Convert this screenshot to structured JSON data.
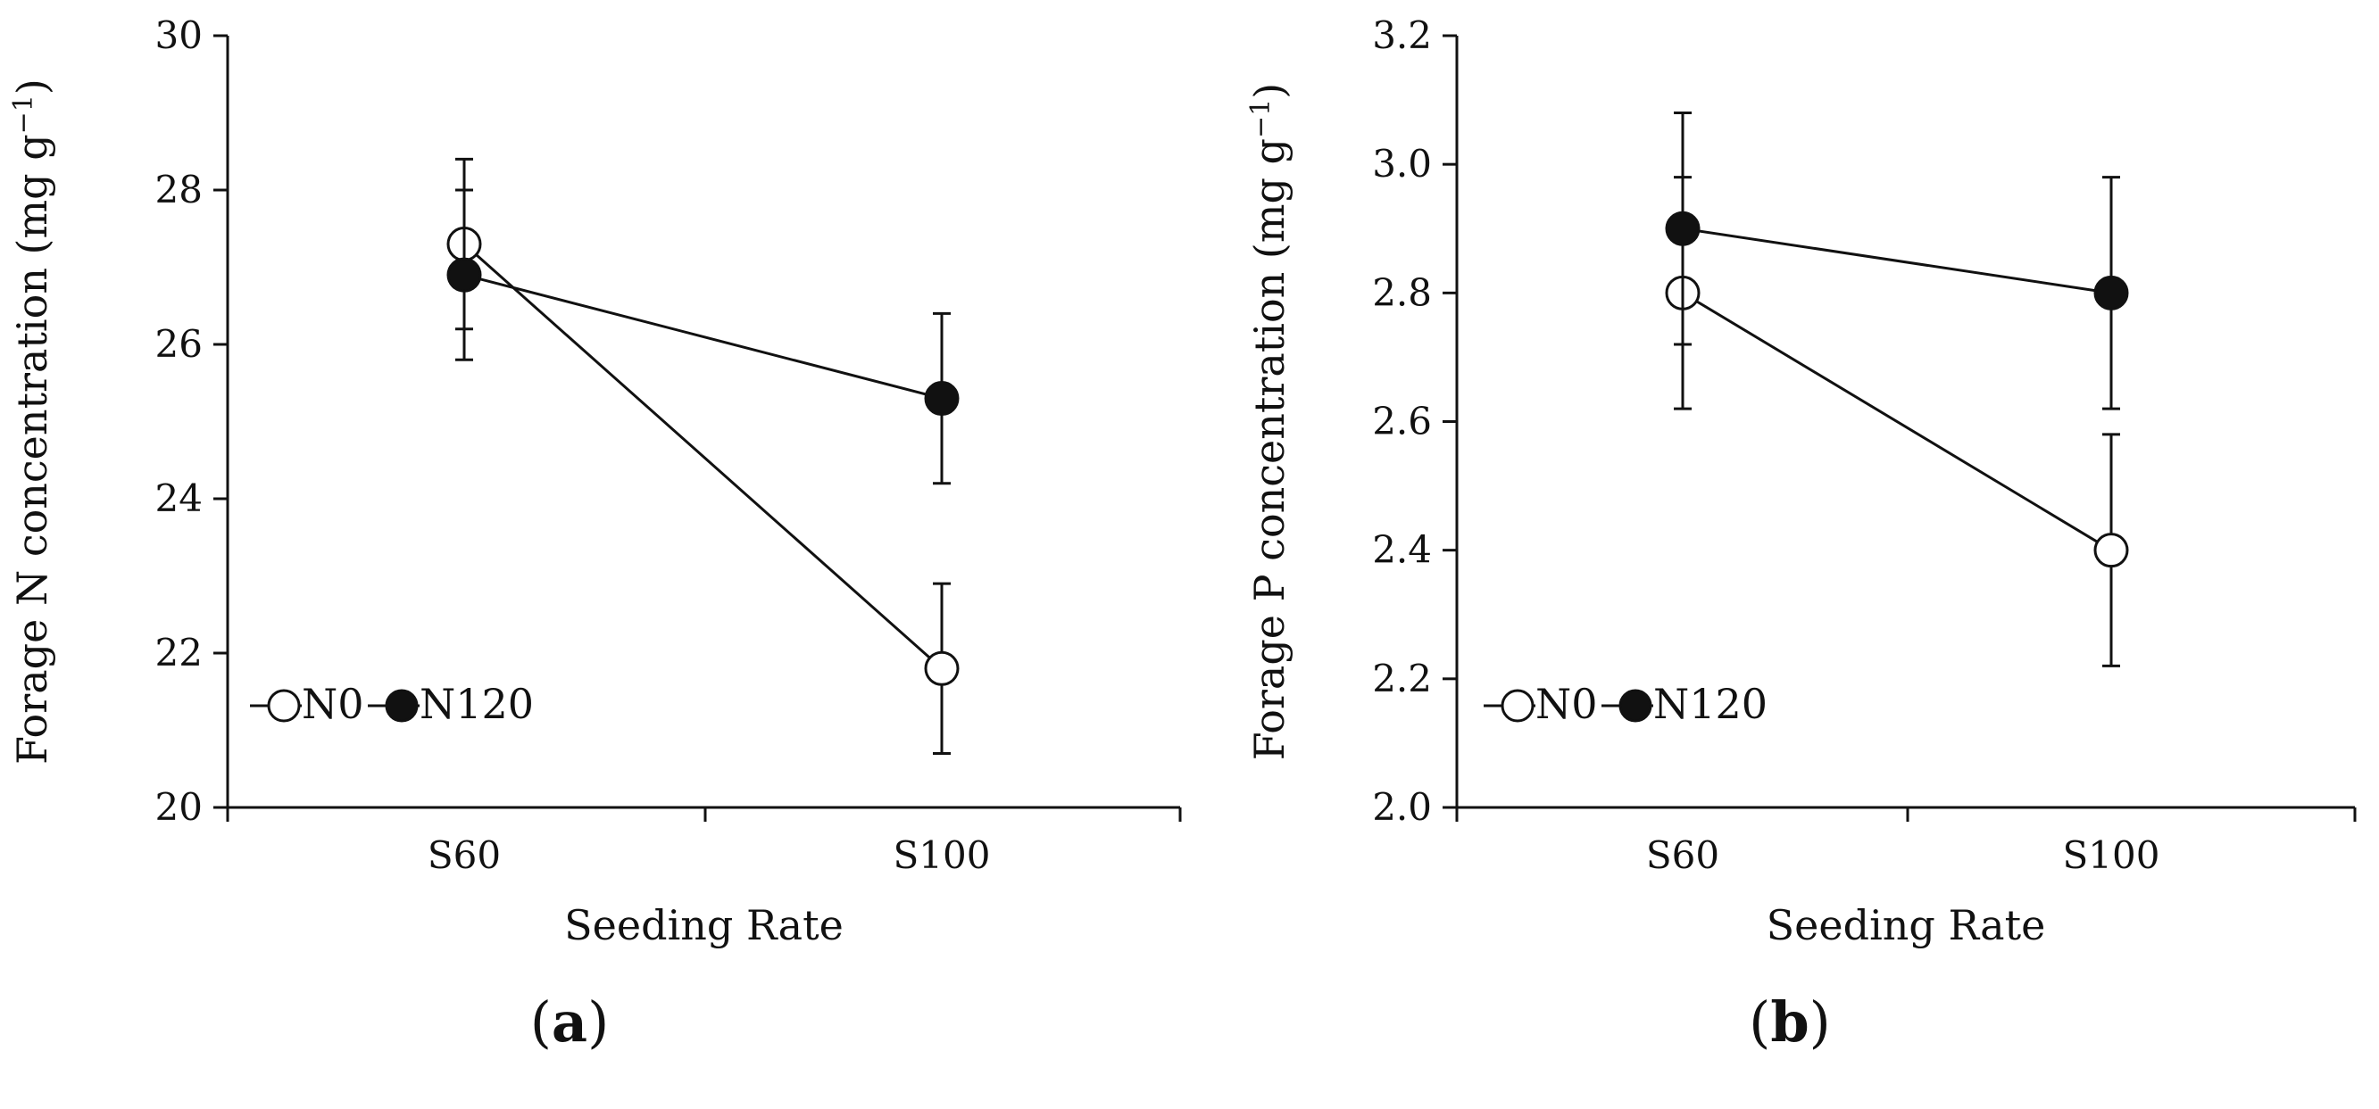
{
  "chart_data": [
    {
      "type": "line",
      "panel_label": "a",
      "title": "",
      "xlabel": "Seeding Rate",
      "ylabel": "Forage N concentration (mg g",
      "ylabel_superscript": "−1",
      "ylabel_close": ")",
      "categories": [
        "S60",
        "S100"
      ],
      "ylim": [
        20,
        30
      ],
      "yticks": [
        "20",
        "22",
        "24",
        "26",
        "28",
        "30"
      ],
      "yticks_values": [
        20,
        22,
        24,
        26,
        28,
        30
      ],
      "legend_position": "bottom-left",
      "series": [
        {
          "name": "N0",
          "marker": "open-circle",
          "values": [
            27.3,
            21.8
          ],
          "error": [
            1.1,
            1.1
          ]
        },
        {
          "name": "N120",
          "marker": "filled-circle",
          "values": [
            26.9,
            25.3
          ],
          "error": [
            1.1,
            1.1
          ]
        }
      ]
    },
    {
      "type": "line",
      "panel_label": "b",
      "title": "",
      "xlabel": "Seeding Rate",
      "ylabel": "Forage P concentration (mg g",
      "ylabel_superscript": "−1",
      "ylabel_close": ")",
      "categories": [
        "S60",
        "S100"
      ],
      "ylim": [
        2.0,
        3.2
      ],
      "yticks": [
        "2.0",
        "2.2",
        "2.4",
        "2.6",
        "2.8",
        "3.0",
        "3.2"
      ],
      "yticks_values": [
        2.0,
        2.2,
        2.4,
        2.6,
        2.8,
        3.0,
        3.2
      ],
      "legend_position": "bottom-left",
      "series": [
        {
          "name": "N0",
          "marker": "open-circle",
          "values": [
            2.8,
            2.4
          ],
          "error": [
            0.18,
            0.18
          ]
        },
        {
          "name": "N120",
          "marker": "filled-circle",
          "values": [
            2.9,
            2.8
          ],
          "error": [
            0.18,
            0.18
          ]
        }
      ]
    }
  ]
}
